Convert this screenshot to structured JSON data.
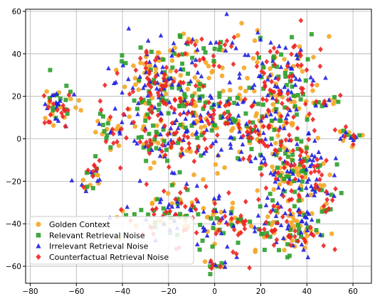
{
  "chart_data": {
    "type": "scatter",
    "title": "",
    "xlabel": "",
    "ylabel": "",
    "xlim": [
      -82,
      68
    ],
    "ylim": [
      -68,
      61
    ],
    "xticks": [
      -80,
      -60,
      -40,
      -20,
      0,
      20,
      40,
      60
    ],
    "yticks": [
      -60,
      -40,
      -20,
      0,
      20,
      40,
      60
    ],
    "xtick_labels": [
      "−80",
      "−60",
      "−40",
      "−20",
      "0",
      "20",
      "40",
      "60"
    ],
    "ytick_labels": [
      "−60",
      "−40",
      "−20",
      "0",
      "20",
      "40",
      "60"
    ],
    "grid": true,
    "legend_position": "lower-left",
    "series": [
      {
        "name": "Golden Context",
        "marker": "circle",
        "color": "#f5a623"
      },
      {
        "name": "Relevant Retrieval Noise",
        "marker": "square",
        "color": "#2ca02c"
      },
      {
        "name": "Irrelevant Retrieval Noise",
        "marker": "triangle",
        "color": "#1f1fe0"
      },
      {
        "name": "Counterfactual Retrieval Noise",
        "marker": "diamond",
        "color": "#ee2222"
      }
    ],
    "clusters": [
      {
        "x": -68,
        "y": 15,
        "sx": 4,
        "sy": 5,
        "n": 60
      },
      {
        "x": -54,
        "y": -18,
        "sx": 3,
        "sy": 4,
        "n": 28
      },
      {
        "x": -45,
        "y": 5,
        "sx": 4,
        "sy": 4,
        "n": 30
      },
      {
        "x": -40,
        "y": -36,
        "sx": 2,
        "sy": 2,
        "n": 8
      },
      {
        "x": -25,
        "y": 28,
        "sx": 9,
        "sy": 9,
        "n": 170
      },
      {
        "x": -5,
        "y": 15,
        "sx": 10,
        "sy": 12,
        "n": 180
      },
      {
        "x": -22,
        "y": 0,
        "sx": 9,
        "sy": 8,
        "n": 120
      },
      {
        "x": -15,
        "y": -35,
        "sx": 9,
        "sy": 7,
        "n": 100
      },
      {
        "x": 5,
        "y": -40,
        "sx": 9,
        "sy": 6,
        "n": 80
      },
      {
        "x": 30,
        "y": 28,
        "sx": 9,
        "sy": 10,
        "n": 160
      },
      {
        "x": 20,
        "y": 5,
        "sx": 10,
        "sy": 8,
        "n": 150
      },
      {
        "x": 35,
        "y": -15,
        "sx": 8,
        "sy": 8,
        "n": 160
      },
      {
        "x": 33,
        "y": -42,
        "sx": 8,
        "sy": 7,
        "n": 130
      },
      {
        "x": 49,
        "y": 16,
        "sx": 2,
        "sy": 2,
        "n": 12
      },
      {
        "x": 59,
        "y": 1,
        "sx": 3,
        "sy": 2,
        "n": 22
      },
      {
        "x": 0,
        "y": -59,
        "sx": 2,
        "sy": 2,
        "n": 16
      },
      {
        "x": -2,
        "y": 44,
        "sx": 10,
        "sy": 3,
        "n": 40
      },
      {
        "x": 47,
        "y": -28,
        "sx": 4,
        "sy": 6,
        "n": 25
      }
    ],
    "seed": 7
  }
}
